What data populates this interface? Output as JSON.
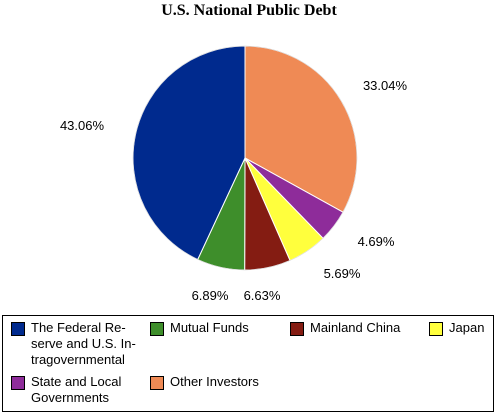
{
  "chart_data": {
    "type": "pie",
    "title": "U.S. National Public Debt",
    "slices": [
      {
        "label": "Other Investors",
        "value": 33.04,
        "value_label": "33.04%",
        "color": "#ef8a55"
      },
      {
        "label": "State and Local Governments",
        "value": 4.69,
        "value_label": "4.69%",
        "color": "#8e2c9a"
      },
      {
        "label": "Japan",
        "value": 5.69,
        "value_label": "5.69%",
        "color": "#ffff3d"
      },
      {
        "label": "Mainland China",
        "value": 6.63,
        "value_label": "6.63%",
        "color": "#841c12"
      },
      {
        "label": "Mutual Funds",
        "value": 6.89,
        "value_label": "6.89%",
        "color": "#3e8e2b"
      },
      {
        "label": "The Federal Reserve and U.S. Intragovernmental",
        "value": 43.06,
        "value_label": "43.06%",
        "color": "#002a8e"
      }
    ],
    "legend": {
      "placement": "bottom",
      "entries": [
        {
          "text": "The Federal Re-\nserve and U.S. In-\ntragovernmental",
          "color": "#002a8e"
        },
        {
          "text": "Mutual Funds",
          "color": "#3e8e2b"
        },
        {
          "text": "Mainland China",
          "color": "#841c12"
        },
        {
          "text": "Japan",
          "color": "#ffff3d"
        },
        {
          "text": "State and Local\nGovernments",
          "color": "#8e2c9a"
        },
        {
          "text": "Other Investors",
          "color": "#ef8a55"
        }
      ]
    }
  }
}
